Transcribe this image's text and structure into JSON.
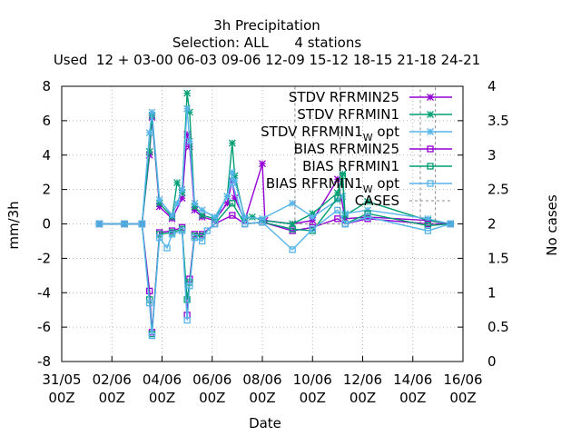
{
  "chart_data": {
    "type": "line",
    "title": "3h Precipitation",
    "subtitle": "Selection: ALL      4 stations",
    "subtitle2": "Used  12 + 03-00 06-03 09-06 12-09 15-12 18-15 21-18 24-21",
    "xlabel": "Date",
    "ylabel": "mm/3h",
    "y2label": "No cases",
    "x_tick_labels": [
      [
        "31/05",
        "00Z"
      ],
      [
        "02/06",
        "00Z"
      ],
      [
        "04/06",
        "00Z"
      ],
      [
        "06/06",
        "00Z"
      ],
      [
        "08/06",
        "00Z"
      ],
      [
        "10/06",
        "00Z"
      ],
      [
        "12/06",
        "00Z"
      ],
      [
        "14/06",
        "00Z"
      ],
      [
        "16/06",
        "00Z"
      ]
    ],
    "xlim_days": [
      0,
      16
    ],
    "ylim": [
      -8,
      8
    ],
    "y_ticks": [
      -8,
      -6,
      -4,
      -2,
      0,
      2,
      4,
      6,
      8
    ],
    "y2lim": [
      0,
      4
    ],
    "y2_ticks": [
      "0",
      "0.5",
      "1",
      "1.5",
      "2",
      "2.5",
      "3",
      "3.5",
      "4"
    ],
    "grid": true,
    "legend_position": "top-right",
    "series": [
      {
        "name": "STDV RFRMIN25",
        "color": "#9400d3",
        "marker": "star",
        "axis": "y1",
        "points": [
          [
            1.5,
            0
          ],
          [
            2.5,
            0
          ],
          [
            3.2,
            0
          ],
          [
            3.5,
            4
          ],
          [
            3.6,
            6.2
          ],
          [
            3.9,
            1.0
          ],
          [
            4.4,
            0.3
          ],
          [
            4.8,
            1.5
          ],
          [
            5.0,
            5.2
          ],
          [
            5.1,
            4.5
          ],
          [
            5.3,
            0.8
          ],
          [
            5.6,
            0.4
          ],
          [
            6.1,
            0.2
          ],
          [
            6.6,
            1.2
          ],
          [
            6.8,
            2.5
          ],
          [
            6.9,
            1.5
          ],
          [
            7.3,
            0.2
          ],
          [
            8.0,
            3.5
          ],
          [
            8.1,
            0.2
          ],
          [
            9.2,
            0
          ],
          [
            10.0,
            0.2
          ],
          [
            11.0,
            2.6
          ],
          [
            11.3,
            0.3
          ],
          [
            12.2,
            0.4
          ],
          [
            14.6,
            0.2
          ],
          [
            15.5,
            0
          ]
        ]
      },
      {
        "name": "STDV RFRMIN1",
        "color": "#009e73",
        "marker": "star",
        "axis": "y1",
        "points": [
          [
            1.5,
            0
          ],
          [
            2.5,
            0
          ],
          [
            3.2,
            0
          ],
          [
            3.5,
            4.2
          ],
          [
            3.6,
            6.3
          ],
          [
            3.9,
            1.2
          ],
          [
            4.4,
            0.4
          ],
          [
            4.6,
            2.4
          ],
          [
            4.8,
            1.8
          ],
          [
            5.0,
            7.6
          ],
          [
            5.1,
            6.5
          ],
          [
            5.3,
            1.0
          ],
          [
            5.6,
            0.5
          ],
          [
            6.1,
            0.3
          ],
          [
            6.6,
            1.6
          ],
          [
            6.8,
            4.7
          ],
          [
            6.9,
            2.8
          ],
          [
            7.3,
            0.3
          ],
          [
            7.6,
            0.4
          ],
          [
            8.0,
            0.2
          ],
          [
            9.2,
            0
          ],
          [
            10.0,
            0.6
          ],
          [
            11.0,
            1.8
          ],
          [
            11.2,
            2.9
          ],
          [
            11.3,
            0.5
          ],
          [
            12.2,
            1.3
          ],
          [
            14.6,
            0.2
          ],
          [
            15.5,
            0
          ]
        ]
      },
      {
        "name": "STDV RFRMIN1_W opt",
        "color": "#56b4e9",
        "marker": "star",
        "axis": "y1",
        "points": [
          [
            1.5,
            0
          ],
          [
            2.5,
            0
          ],
          [
            3.2,
            0
          ],
          [
            3.5,
            5.3
          ],
          [
            3.6,
            6.5
          ],
          [
            3.9,
            1.4
          ],
          [
            4.4,
            0.5
          ],
          [
            4.6,
            1.2
          ],
          [
            4.8,
            2.0
          ],
          [
            5.0,
            6.7
          ],
          [
            5.1,
            4.8
          ],
          [
            5.3,
            1.2
          ],
          [
            5.6,
            0.8
          ],
          [
            6.1,
            0.4
          ],
          [
            6.6,
            1.6
          ],
          [
            6.8,
            3.0
          ],
          [
            6.9,
            2.5
          ],
          [
            7.3,
            0.4
          ],
          [
            8.0,
            0.3
          ],
          [
            9.2,
            1.2
          ],
          [
            10.0,
            0.4
          ],
          [
            11.0,
            1.4
          ],
          [
            11.2,
            1.6
          ],
          [
            11.3,
            0.6
          ],
          [
            12.2,
            0.8
          ],
          [
            14.6,
            0.3
          ],
          [
            15.5,
            0
          ]
        ]
      },
      {
        "name": "BIAS RFRMIN25",
        "color": "#9400d3",
        "marker": "square",
        "axis": "y1",
        "points": [
          [
            1.5,
            0
          ],
          [
            2.5,
            0
          ],
          [
            3.2,
            0
          ],
          [
            3.5,
            -3.9
          ],
          [
            3.6,
            -6.3
          ],
          [
            3.9,
            -0.5
          ],
          [
            4.4,
            -0.4
          ],
          [
            4.8,
            -0.2
          ],
          [
            5.0,
            -5.3
          ],
          [
            5.1,
            -3.2
          ],
          [
            5.3,
            -0.6
          ],
          [
            5.6,
            -0.6
          ],
          [
            6.1,
            0
          ],
          [
            6.8,
            0.5
          ],
          [
            7.3,
            0
          ],
          [
            8.0,
            0.1
          ],
          [
            9.2,
            -0.4
          ],
          [
            10.0,
            -0.2
          ],
          [
            11.0,
            0.3
          ],
          [
            11.3,
            0
          ],
          [
            12.2,
            0.3
          ],
          [
            14.6,
            0
          ],
          [
            15.5,
            0
          ]
        ]
      },
      {
        "name": "BIAS RFRMIN1",
        "color": "#009e73",
        "marker": "square",
        "axis": "y1",
        "points": [
          [
            1.5,
            0
          ],
          [
            2.5,
            0
          ],
          [
            3.2,
            0
          ],
          [
            3.5,
            -4.4
          ],
          [
            3.6,
            -6.4
          ],
          [
            3.9,
            -0.6
          ],
          [
            4.4,
            -0.5
          ],
          [
            4.8,
            -0.3
          ],
          [
            5.0,
            -4.4
          ],
          [
            5.1,
            -3.4
          ],
          [
            5.3,
            -0.7
          ],
          [
            5.6,
            -0.7
          ],
          [
            6.1,
            0
          ],
          [
            6.8,
            1.2
          ],
          [
            7.3,
            0
          ],
          [
            8.0,
            0.1
          ],
          [
            9.2,
            -0.3
          ],
          [
            10.0,
            -0.4
          ],
          [
            11.0,
            1.5
          ],
          [
            11.2,
            2.8
          ],
          [
            11.3,
            0
          ],
          [
            12.2,
            0.6
          ],
          [
            14.6,
            -0.1
          ],
          [
            15.5,
            0
          ]
        ]
      },
      {
        "name": "BIAS RFRMIN1_W opt",
        "color": "#56b4e9",
        "marker": "square",
        "axis": "y1",
        "points": [
          [
            1.5,
            0
          ],
          [
            2.5,
            0
          ],
          [
            3.2,
            0
          ],
          [
            3.5,
            -4.6
          ],
          [
            3.6,
            -6.5
          ],
          [
            3.9,
            -0.8
          ],
          [
            4.2,
            -1.4
          ],
          [
            4.4,
            -0.6
          ],
          [
            4.8,
            -0.4
          ],
          [
            5.0,
            -5.6
          ],
          [
            5.1,
            -3.6
          ],
          [
            5.3,
            -0.8
          ],
          [
            5.6,
            -1.0
          ],
          [
            5.8,
            -0.4
          ],
          [
            6.1,
            0
          ],
          [
            6.8,
            2.4
          ],
          [
            7.3,
            0
          ],
          [
            8.0,
            0.1
          ],
          [
            9.2,
            -1.5
          ],
          [
            10.0,
            -0.3
          ],
          [
            11.0,
            0.8
          ],
          [
            11.3,
            0
          ],
          [
            12.2,
            0.4
          ],
          [
            14.6,
            -0.4
          ],
          [
            15.5,
            0
          ]
        ]
      },
      {
        "name": "CASES",
        "color": "#888888",
        "marker": "none",
        "dashed": true,
        "axis": "y2",
        "points": [
          [
            1.5,
            4
          ],
          [
            9.3,
            4
          ],
          [
            9.3,
            2
          ],
          [
            11.1,
            2
          ],
          [
            11.1,
            4
          ],
          [
            14.3,
            4
          ],
          [
            14.3,
            2
          ],
          [
            14.9,
            2
          ],
          [
            14.9,
            4
          ],
          [
            15.5,
            4
          ]
        ]
      }
    ]
  }
}
